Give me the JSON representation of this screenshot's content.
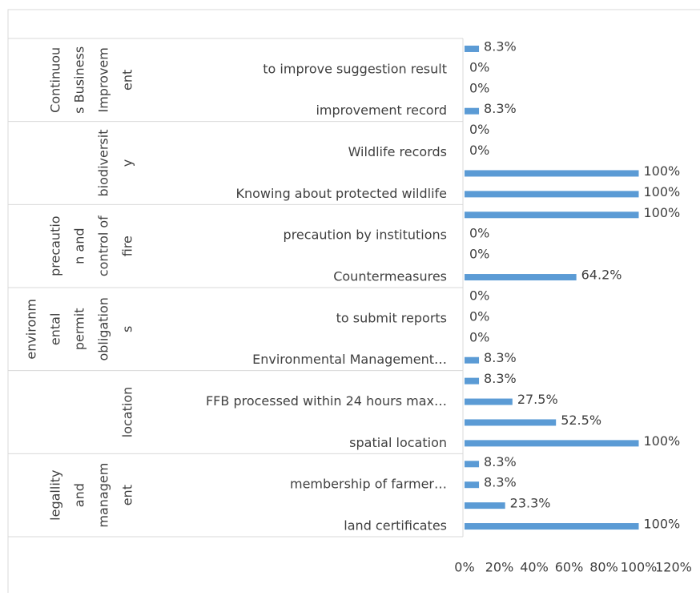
{
  "chart_data": {
    "type": "bar",
    "orientation": "horizontal",
    "color": "#5b9bd5",
    "groups": [
      {
        "label": [
          "Continuou",
          "s Business",
          "Improvem",
          "ent"
        ],
        "size": 4
      },
      {
        "label": [
          "biodiversit",
          "y"
        ],
        "size": 4
      },
      {
        "label": [
          "precautio",
          "n and",
          "control of",
          "fire"
        ],
        "size": 4
      },
      {
        "label": [
          "environm",
          "ental",
          "permit",
          "obligation",
          "s"
        ],
        "size": 4
      },
      {
        "label": [
          "location"
        ],
        "size": 4
      },
      {
        "label": [
          "legallity",
          "and",
          "managem",
          "ent"
        ],
        "size": 4
      }
    ],
    "categories": [
      null,
      "to improve suggestion result",
      null,
      "improvement record",
      null,
      "Wildlife records",
      null,
      "Knowing about protected wildlife",
      null,
      "precaution by institutions",
      null,
      "Countermeasures",
      null,
      "to submit  reports",
      null,
      "Environmental Management…",
      null,
      "FFB processed within 24 hours max…",
      null,
      "spatial location",
      null,
      "membership of farmer…",
      null,
      "land certificates"
    ],
    "values": [
      8.3,
      0,
      0,
      8.3,
      0,
      0,
      100,
      100,
      100,
      0,
      0,
      64.2,
      0,
      0,
      0,
      8.3,
      8.3,
      27.5,
      52.5,
      100,
      8.3,
      8.3,
      23.3,
      100
    ],
    "value_labels": [
      "8.3%",
      "0%",
      "0%",
      "8.3%",
      "0%",
      "0%",
      "100%",
      "100%",
      "100%",
      "0%",
      "0%",
      "64.2%",
      "0%",
      "0%",
      "0%",
      "8.3%",
      "8.3%",
      "27.5%",
      "52.5%",
      "100%",
      "8.3%",
      "8.3%",
      "23.3%",
      "100%"
    ],
    "xlim": [
      0,
      120
    ],
    "xticks": [
      {
        "value": 0,
        "label": "0%"
      },
      {
        "value": 20,
        "label": "20%"
      },
      {
        "value": 40,
        "label": "40%"
      },
      {
        "value": 60,
        "label": "60%"
      },
      {
        "value": 80,
        "label": "80%"
      },
      {
        "value": 100,
        "label": "100%"
      },
      {
        "value": 120,
        "label": "120%"
      }
    ]
  }
}
